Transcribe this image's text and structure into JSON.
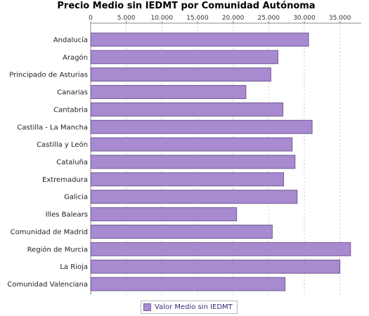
{
  "chart_data": {
    "type": "bar",
    "orientation": "horizontal",
    "title": "Precio Medio sin IEDMT por Comunidad Autónoma",
    "categories": [
      "Andalucía",
      "Aragón",
      "Principado de Asturias",
      "Canarias",
      "Cantabria",
      "Castilla - La Mancha",
      "Castilla y León",
      "Cataluña",
      "Extremadura",
      "Galicia",
      "Illes Balears",
      "Comunidad de Madrid",
      "Región de Murcia",
      "La Rioja",
      "Comunidad Valenciana"
    ],
    "series": [
      {
        "name": "Valor Medio sin IEDMT",
        "color": "#a88ad0",
        "values": [
          30600,
          26300,
          25300,
          21800,
          27000,
          31100,
          28300,
          28700,
          27100,
          29000,
          20500,
          25500,
          36500,
          35000,
          27300
        ]
      }
    ],
    "xlim": [
      0,
      38000
    ],
    "x_ticks": [
      "0",
      "5.000",
      "10.000",
      "15.000",
      "20.000",
      "25.000",
      "30.000",
      "35.000"
    ],
    "tick_values": [
      0,
      5000,
      10000,
      15000,
      20000,
      25000,
      30000,
      35000
    ],
    "grid": true,
    "legend_position": "bottom"
  }
}
